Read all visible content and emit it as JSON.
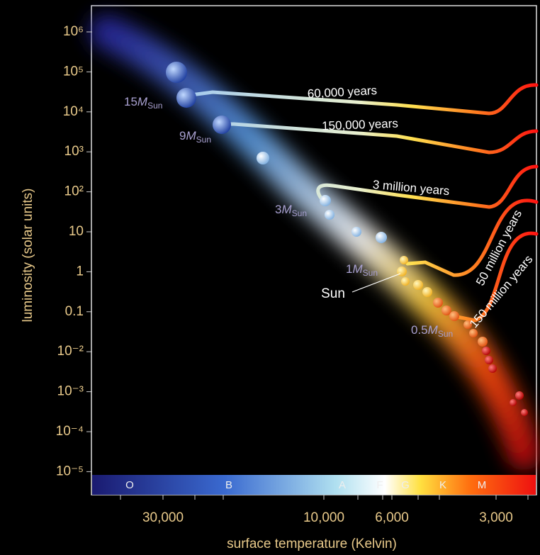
{
  "y_axis": {
    "title": "luminosity (solar units)",
    "ticks": [
      "10⁶",
      "10⁵",
      "10⁴",
      "10³",
      "10²",
      "10",
      "1",
      "0.1",
      "10⁻²",
      "10⁻³",
      "10⁻⁴",
      "10⁻⁵"
    ]
  },
  "x_axis": {
    "title": "surface temperature (Kelvin)",
    "ticks": [
      "30,000",
      "10,000",
      "6,000",
      "3,000"
    ]
  },
  "spectral_classes": [
    "O",
    "B",
    "A",
    "F",
    "G",
    "K",
    "M"
  ],
  "tracks": [
    "60,000 years",
    "150,000 years",
    "3 million years",
    "50 million years",
    "150 million years"
  ],
  "masses": [
    {
      "number": "15",
      "symbol": "M",
      "subscript": "Sun"
    },
    {
      "number": "9",
      "symbol": "M",
      "subscript": "Sun"
    },
    {
      "number": "3",
      "symbol": "M",
      "subscript": "Sun"
    },
    {
      "number": "1",
      "symbol": "M",
      "subscript": "Sun"
    },
    {
      "number": "0.5",
      "symbol": "M",
      "subscript": "Sun"
    }
  ],
  "sun_label": "Sun"
}
